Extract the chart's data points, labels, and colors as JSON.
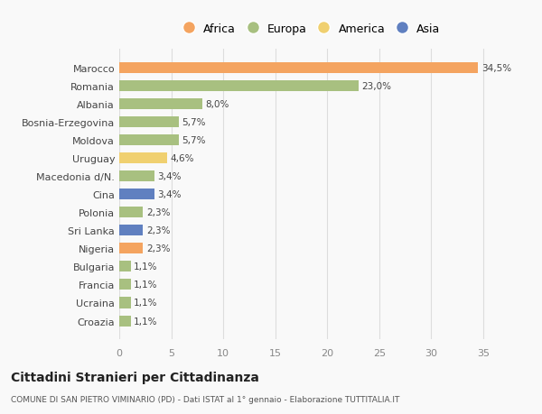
{
  "countries": [
    "Marocco",
    "Romania",
    "Albania",
    "Bosnia-Erzegovina",
    "Moldova",
    "Uruguay",
    "Macedonia d/N.",
    "Cina",
    "Polonia",
    "Sri Lanka",
    "Nigeria",
    "Bulgaria",
    "Francia",
    "Ucraina",
    "Croazia"
  ],
  "values": [
    34.5,
    23.0,
    8.0,
    5.7,
    5.7,
    4.6,
    3.4,
    3.4,
    2.3,
    2.3,
    2.3,
    1.1,
    1.1,
    1.1,
    1.1
  ],
  "labels": [
    "34,5%",
    "23,0%",
    "8,0%",
    "5,7%",
    "5,7%",
    "4,6%",
    "3,4%",
    "3,4%",
    "2,3%",
    "2,3%",
    "2,3%",
    "1,1%",
    "1,1%",
    "1,1%",
    "1,1%"
  ],
  "continents": [
    "Africa",
    "Europa",
    "Europa",
    "Europa",
    "Europa",
    "America",
    "Europa",
    "Asia",
    "Europa",
    "Asia",
    "Africa",
    "Europa",
    "Europa",
    "Europa",
    "Europa"
  ],
  "colors": {
    "Africa": "#F4A460",
    "Europa": "#A8C080",
    "America": "#F0D070",
    "Asia": "#6080C0"
  },
  "legend_order": [
    "Africa",
    "Europa",
    "America",
    "Asia"
  ],
  "legend_colors": {
    "Africa": "#F4A460",
    "Europa": "#A8C080",
    "America": "#F0D070",
    "Asia": "#6080C0"
  },
  "title": "Cittadini Stranieri per Cittadinanza",
  "subtitle": "COMUNE DI SAN PIETRO VIMINARIO (PD) - Dati ISTAT al 1° gennaio - Elaborazione TUTTITALIA.IT",
  "xlim": [
    0,
    37
  ],
  "xticks": [
    0,
    5,
    10,
    15,
    20,
    25,
    30,
    35
  ],
  "background_color": "#f9f9f9",
  "grid_color": "#dddddd"
}
